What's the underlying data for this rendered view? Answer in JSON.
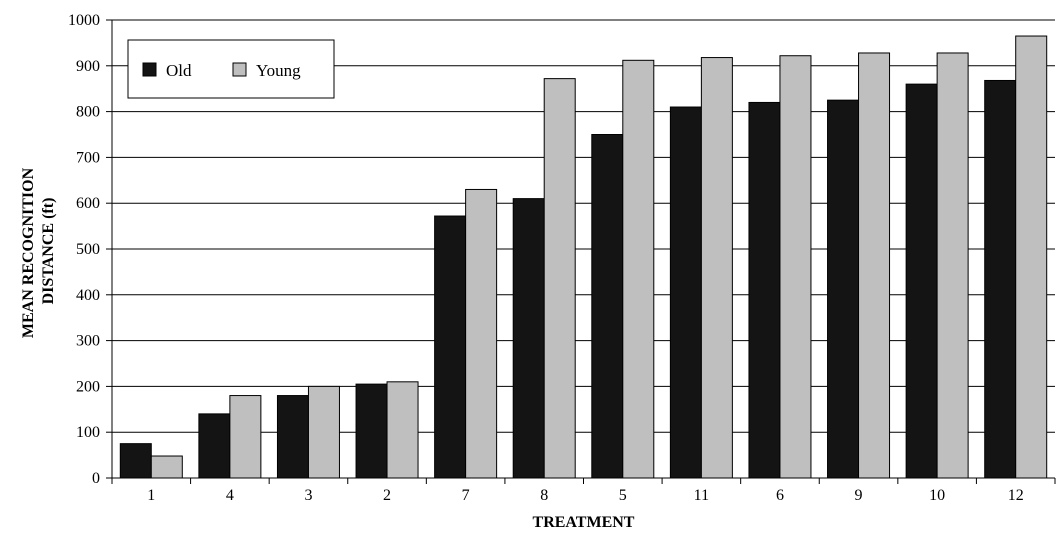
{
  "chart_data": {
    "type": "bar",
    "title": "",
    "xlabel": "TREATMENT",
    "ylabel": "MEAN RECOGNITION DISTANCE (ft)",
    "ylabel_lines": [
      "MEAN RECOGNITION",
      "DISTANCE (ft)"
    ],
    "categories": [
      "1",
      "4",
      "3",
      "2",
      "7",
      "8",
      "5",
      "11",
      "6",
      "9",
      "10",
      "12"
    ],
    "series": [
      {
        "name": "Old",
        "color": "#141414",
        "values": [
          75,
          140,
          180,
          205,
          572,
          610,
          750,
          810,
          820,
          825,
          860,
          868
        ]
      },
      {
        "name": "Young",
        "color": "#bfbfbf",
        "values": [
          48,
          180,
          200,
          210,
          630,
          872,
          912,
          918,
          922,
          928,
          928,
          965
        ]
      }
    ],
    "ylim": [
      0,
      1000
    ],
    "yticks": [
      0,
      100,
      200,
      300,
      400,
      500,
      600,
      700,
      800,
      900,
      1000
    ],
    "grid": true,
    "legend_position": "top-left"
  }
}
